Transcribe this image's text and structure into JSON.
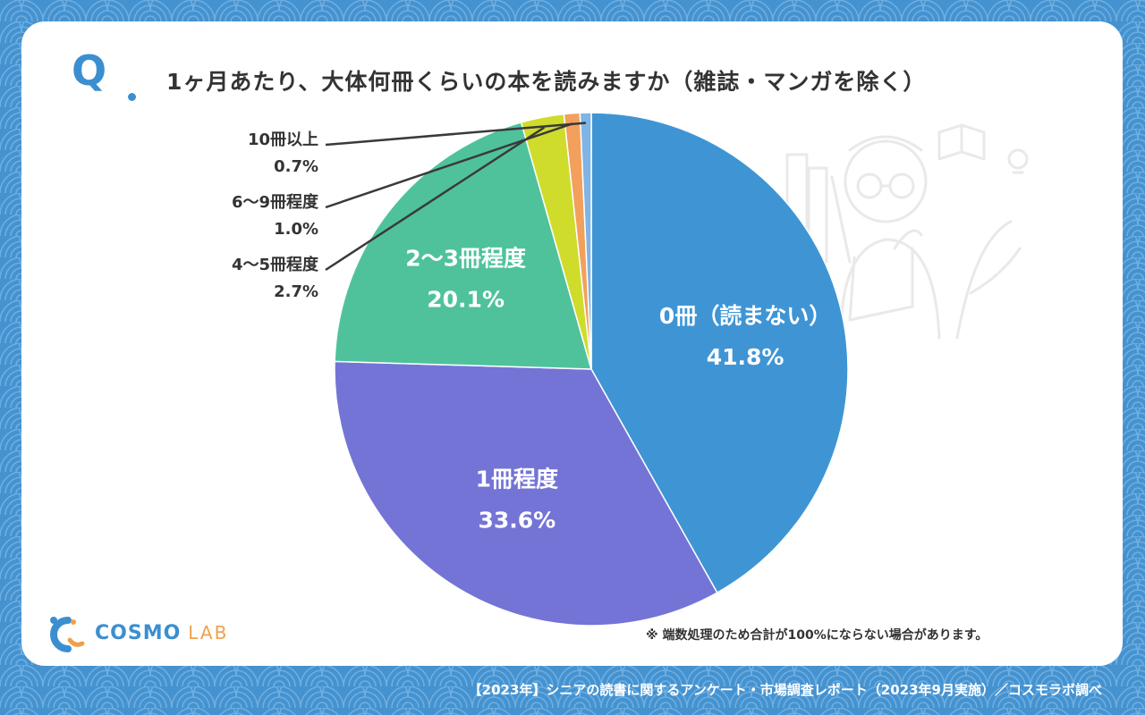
{
  "header": {
    "q_mark": "Q",
    "title": "1ヶ月あたり、大体何冊くらいの本を読みますか（雑誌・マンガを除く）"
  },
  "footer": {
    "note": "※ 端数処理のため合計が100%にならない場合があります。",
    "source": "【2023年】シニアの読書に関するアンケート・市場調査レポート（2023年9月実施）／コスモラボ調べ"
  },
  "logo": {
    "cosmo": "COSMO",
    "lab": "LAB"
  },
  "colors": {
    "background": "#4592d0",
    "card": "#ffffff",
    "accent": "#3b8fd0",
    "text": "#333333"
  },
  "chart_data": {
    "type": "pie",
    "title": "1ヶ月あたり、大体何冊くらいの本を読みますか（雑誌・マンガを除く）",
    "start_angle_deg": 0,
    "direction": "clockwise",
    "slices": [
      {
        "label": "0冊（読まない）",
        "value": 41.8,
        "value_label": "41.8%",
        "color": "#3f95d4",
        "label_inside": true
      },
      {
        "label": "1冊程度",
        "value": 33.6,
        "value_label": "33.6%",
        "color": "#7474d6",
        "label_inside": true
      },
      {
        "label": "2〜3冊程度",
        "value": 20.1,
        "value_label": "20.1%",
        "color": "#4fc29c",
        "label_inside": true
      },
      {
        "label": "4〜5冊程度",
        "value": 2.7,
        "value_label": "2.7%",
        "color": "#cfdc2c",
        "label_inside": false
      },
      {
        "label": "6〜9冊程度",
        "value": 1.0,
        "value_label": "1.0%",
        "color": "#f2a05c",
        "label_inside": false
      },
      {
        "label": "10冊以上",
        "value": 0.7,
        "value_label": "0.7%",
        "color": "#7fb4e4",
        "label_inside": false
      }
    ]
  }
}
